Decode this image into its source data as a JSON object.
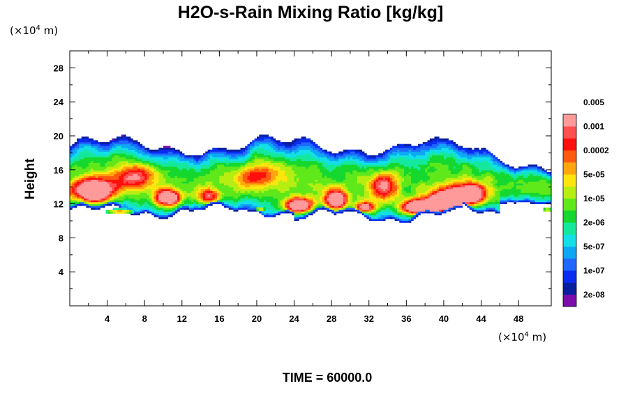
{
  "chart_data": {
    "type": "heatmap",
    "title": "H2O-s-Rain Mixing Ratio [kg/kg]",
    "xlabel": "",
    "ylabel": "Height",
    "x_unit": "(×10⁴ m)",
    "y_unit": "(×10⁴ m)",
    "x_unit_base": "(×10",
    "x_unit_exp": "4",
    "x_unit_tail": " m)",
    "xlim": [
      0,
      51.5
    ],
    "ylim": [
      0,
      30
    ],
    "x_ticks": [
      4,
      8,
      12,
      16,
      20,
      24,
      28,
      32,
      36,
      40,
      44,
      48
    ],
    "y_ticks": [
      4,
      8,
      12,
      16,
      20,
      24,
      28
    ],
    "x_tick_labels": [
      "4",
      "8",
      "12",
      "16",
      "20",
      "24",
      "28",
      "32",
      "36",
      "40",
      "44",
      "48"
    ],
    "y_tick_labels": [
      "4",
      "8",
      "12",
      "16",
      "20",
      "24",
      "28"
    ],
    "colorbar": {
      "colors": [
        "#7a0dab",
        "#0a1fa0",
        "#0a2cf0",
        "#1f68ff",
        "#0ea7f5",
        "#12e0e6",
        "#15e89d",
        "#15d82e",
        "#5fe81a",
        "#b7ee12",
        "#ffe50e",
        "#ffa60e",
        "#ff5a0e",
        "#ff0e0e",
        "#ff4f4f",
        "#ff9a9a"
      ],
      "labels": [
        "2e-08",
        "1e-07",
        "5e-07",
        "2e-06",
        "1e-05",
        "5e-05",
        "0.0002",
        "0.001",
        "0.005"
      ]
    },
    "field_description_levels": {
      "cloud_band_bottom_km_x10": 10.5,
      "cloud_band_top_km_x10": 19.5
    },
    "time_label": "TIME = 60000.0"
  }
}
